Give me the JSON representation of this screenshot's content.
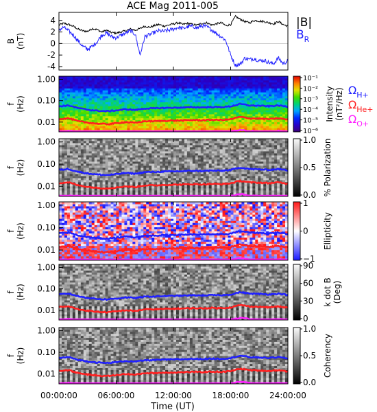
{
  "chart_data": {
    "type": "multi-panel spectrogram",
    "title": "ACE Mag 2011-005",
    "xlabel": "Time (UT)",
    "x_ticks": [
      "00:00:00",
      "06:00:00",
      "12:00:00",
      "18:00:00",
      "24:00:00"
    ],
    "xlim": [
      0,
      24
    ],
    "panels": [
      {
        "type": "line",
        "ylabel": [
          "B",
          "(nT)"
        ],
        "ylim": [
          -4.6,
          5.4
        ],
        "y_ticks": [
          "4",
          "2",
          "0",
          "-2",
          "-4"
        ],
        "y_tick_values": [
          4,
          2,
          0,
          -2,
          -4
        ],
        "legend": [
          {
            "name": "|B|",
            "color": "#000000"
          },
          {
            "name": "B",
            "sub": "R",
            "color": "#2020ff"
          }
        ],
        "series": [
          {
            "name": "|B|",
            "color": "#000000",
            "t": [
              0,
              0.5,
              1,
              1.5,
              2,
              2.5,
              3,
              3.5,
              4,
              4.5,
              5,
              5.5,
              6,
              6.5,
              7,
              7.5,
              8,
              8.5,
              9,
              9.5,
              10,
              10.5,
              11,
              11.5,
              12,
              12.5,
              13,
              13.5,
              14,
              14.5,
              15,
              15.5,
              16,
              16.5,
              17,
              17.5,
              18,
              18.5,
              19,
              19.5,
              20,
              20.5,
              21,
              21.5,
              22,
              22.5,
              23,
              23.5,
              24
            ],
            "values": [
              3.2,
              3.5,
              3.3,
              3.0,
              2.5,
              2.2,
              2.1,
              2.6,
              2.4,
              2.0,
              2.3,
              1.9,
              1.8,
              2.0,
              2.2,
              2.5,
              2.3,
              2.6,
              3.0,
              2.8,
              3.1,
              3.3,
              3.0,
              3.2,
              3.4,
              3.6,
              3.3,
              3.5,
              3.3,
              3.2,
              3.5,
              3.6,
              3.2,
              3.4,
              3.6,
              3.1,
              3.3,
              4.7,
              4.2,
              3.8,
              3.6,
              4.0,
              3.9,
              3.8,
              3.6,
              3.4,
              3.8,
              3.3,
              3.0
            ]
          },
          {
            "name": "B_R",
            "color": "#2020ff",
            "t": [
              0,
              0.5,
              1,
              1.5,
              2,
              2.5,
              3,
              3.5,
              4,
              4.5,
              5,
              5.5,
              6,
              6.5,
              7,
              7.5,
              8,
              8.5,
              9,
              9.5,
              10,
              10.5,
              11,
              11.5,
              12,
              12.5,
              13,
              13.5,
              14,
              14.5,
              15,
              15.5,
              16,
              16.5,
              17,
              17.5,
              18,
              18.5,
              19,
              19.5,
              20,
              20.5,
              21,
              21.5,
              22,
              22.5,
              23,
              23.5,
              24
            ],
            "values": [
              2.4,
              2.8,
              2.2,
              1.5,
              0.5,
              -0.5,
              -1.0,
              -0.5,
              0.3,
              1.5,
              1.8,
              1.2,
              1.0,
              1.4,
              1.8,
              2.2,
              1.6,
              -2.0,
              1.2,
              1.5,
              1.9,
              2.2,
              2.1,
              2.3,
              2.5,
              2.8,
              2.6,
              2.9,
              3.0,
              2.7,
              3.1,
              2.9,
              2.4,
              1.8,
              1.2,
              0.5,
              -2.0,
              -3.8,
              -3.6,
              -2.5,
              -2.8,
              -2.6,
              -3.0,
              -2.9,
              -3.3,
              -3.5,
              -2.5,
              -3.5,
              -3.0
            ]
          }
        ]
      },
      {
        "type": "heatmap",
        "colormap": "rainbow",
        "ylabel": [
          "f",
          "(Hz)"
        ],
        "y_scale": "log",
        "ylim": [
          0.0035,
          1.4
        ],
        "y_ticks": [
          "1.00",
          "0.10",
          "0.01"
        ],
        "colorbar": {
          "label": [
            "Intensity",
            "(nT²/Hz)"
          ],
          "scale": "log",
          "ticks": [
            "10⁻¹",
            "10⁻²",
            "10⁻³",
            "10⁻⁴",
            "10⁻⁵",
            "10⁻⁶"
          ]
        },
        "legend": [
          {
            "name": "Ω",
            "sub": "H+",
            "color": "#2020ff"
          },
          {
            "name": "Ω",
            "sub": "He+",
            "color": "#ff2020"
          },
          {
            "name": "Ω",
            "sub": "O+",
            "color": "#ff20ff"
          }
        ]
      },
      {
        "type": "heatmap",
        "colormap": "gray",
        "ylabel": [
          "f",
          "(Hz)"
        ],
        "y_scale": "log",
        "ylim": [
          0.0035,
          1.4
        ],
        "y_ticks": [
          "1.00",
          "0.10",
          "0.01"
        ],
        "colorbar": {
          "label": [
            "% Polarization"
          ],
          "ticks": [
            "1.0",
            "0.5",
            "0.0"
          ]
        }
      },
      {
        "type": "heatmap",
        "colormap": "bluewhitered",
        "ylabel": [
          "f",
          "(Hz)"
        ],
        "y_scale": "log",
        "ylim": [
          0.0035,
          1.4
        ],
        "y_ticks": [
          "1.00",
          "0.10",
          "0.01"
        ],
        "colorbar": {
          "label": [
            "Ellipticity"
          ],
          "ticks": [
            "1",
            "0",
            "−1"
          ]
        }
      },
      {
        "type": "heatmap",
        "colormap": "gray",
        "ylabel": [
          "f",
          "(Hz)"
        ],
        "y_scale": "log",
        "ylim": [
          0.0035,
          1.4
        ],
        "y_ticks": [
          "1.00",
          "0.10",
          "0.01"
        ],
        "colorbar": {
          "label": [
            "k dot B",
            "(Deg)"
          ],
          "ticks": [
            "90",
            "60",
            "30",
            "0"
          ]
        }
      },
      {
        "type": "heatmap",
        "colormap": "gray",
        "ylabel": [
          "f",
          "(Hz)"
        ],
        "y_scale": "log",
        "ylim": [
          0.0035,
          1.4
        ],
        "y_ticks": [
          "1.00",
          "0.10",
          "0.01"
        ],
        "colorbar": {
          "label": [
            "Coherency"
          ],
          "ticks": [
            "1.0",
            "0.5",
            "0.0"
          ]
        }
      }
    ],
    "gyrofrequency_lines": {
      "t": [
        0,
        1,
        2,
        3,
        4,
        5,
        6,
        7,
        8,
        9,
        10,
        11,
        12,
        13,
        14,
        15,
        16,
        17,
        18,
        19,
        20,
        21,
        22,
        23,
        24
      ],
      "series": [
        {
          "name": "ΩH+",
          "color": "#2020ff",
          "values": [
            0.055,
            0.06,
            0.045,
            0.038,
            0.034,
            0.032,
            0.035,
            0.04,
            0.037,
            0.043,
            0.044,
            0.046,
            0.047,
            0.048,
            0.05,
            0.049,
            0.051,
            0.05,
            0.054,
            0.07,
            0.06,
            0.058,
            0.055,
            0.06,
            0.052
          ]
        },
        {
          "name": "ΩHe+",
          "color": "#ff2020",
          "values": [
            0.014,
            0.015,
            0.011,
            0.0095,
            0.0085,
            0.008,
            0.0088,
            0.01,
            0.0092,
            0.011,
            0.011,
            0.0115,
            0.0118,
            0.012,
            0.0125,
            0.0122,
            0.0128,
            0.0125,
            0.0135,
            0.0175,
            0.015,
            0.0145,
            0.0138,
            0.015,
            0.013
          ]
        },
        {
          "name": "ΩO+",
          "color": "#ff20ff",
          "values": [
            0.0035,
            0.0038,
            0.0036,
            0.0035,
            0.0035,
            0.0035,
            0.0035,
            0.0035,
            0.0035,
            0.0035,
            0.0035,
            0.0035,
            0.0035,
            0.0035,
            0.0035,
            0.0035,
            0.0035,
            0.0035,
            0.0036,
            0.0044,
            0.0038,
            0.0036,
            0.0035,
            0.0038,
            0.0035
          ]
        }
      ]
    }
  }
}
